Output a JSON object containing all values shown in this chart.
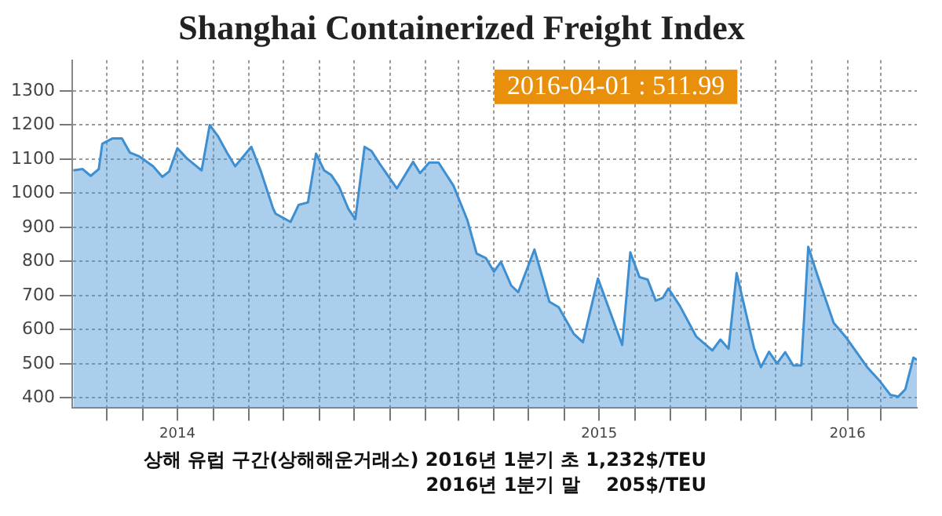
{
  "chart_data": {
    "type": "area",
    "title": "Shanghai Containerized Freight Index",
    "annotations": [
      "2016-04-01 : 511.99",
      "상해 유럽 구간(상해해운거래소) 2016년 1분기 초 1,232$/TEU",
      "2016년 1분기 말    205$/TEU"
    ],
    "x": [
      "2014-04-02",
      "2014-04-10",
      "2014-04-17",
      "2014-04-24",
      "2014-04-27",
      "2014-05-06",
      "2014-05-14",
      "2014-05-21",
      "2014-05-29",
      "2014-06-10",
      "2014-06-18",
      "2014-06-24",
      "2014-07-01",
      "2014-07-09",
      "2014-07-22",
      "2014-07-29",
      "2014-08-05",
      "2014-08-13",
      "2014-08-20",
      "2014-09-03",
      "2014-09-11",
      "2014-09-22",
      "2014-09-24",
      "2014-10-07",
      "2014-10-14",
      "2014-10-22",
      "2014-10-29",
      "2014-11-05",
      "2014-11-11",
      "2014-11-18",
      "2014-11-26",
      "2014-12-02",
      "2014-12-10",
      "2014-12-16",
      "2014-12-23",
      "2015-01-07",
      "2015-01-21",
      "2015-01-27",
      "2015-02-04",
      "2015-02-12",
      "2015-02-25",
      "2015-03-09",
      "2015-03-17",
      "2015-03-25",
      "2015-04-01",
      "2015-04-07",
      "2015-04-16",
      "2015-04-22",
      "2015-05-06",
      "2015-05-19",
      "2015-05-27",
      "2015-06-09",
      "2015-06-17",
      "2015-06-30",
      "2015-07-21",
      "2015-07-28",
      "2015-08-05",
      "2015-08-12",
      "2015-08-19",
      "2015-08-25",
      "2015-08-30",
      "2015-09-09",
      "2015-09-23",
      "2015-10-07",
      "2015-10-14",
      "2015-10-21",
      "2015-10-28",
      "2015-11-12",
      "2015-11-18",
      "2015-11-25",
      "2015-12-02",
      "2015-12-09",
      "2015-12-16",
      "2015-12-23",
      "2015-12-29",
      "2016-01-06",
      "2016-01-20",
      "2016-01-31",
      "2016-02-18",
      "2016-02-29",
      "2016-03-09",
      "2016-03-16",
      "2016-03-22",
      "2016-03-29",
      "2016-04-01"
    ],
    "series": [
      {
        "color": "#3d8fd1",
        "values": [
          1067,
          1071,
          1051,
          1071,
          1145,
          1161,
          1161,
          1119,
          1108,
          1079,
          1048,
          1064,
          1132,
          1103,
          1067,
          1200,
          1168,
          1119,
          1079,
          1136,
          1067,
          954,
          940,
          916,
          966,
          973,
          1116,
          1067,
          1054,
          1019,
          954,
          924,
          1136,
          1124,
          1087,
          1014,
          1092,
          1059,
          1090,
          1090,
          1022,
          921,
          823,
          810,
          770,
          799,
          729,
          710,
          835,
          682,
          666,
          588,
          563,
          750,
          555,
          827,
          754,
          747,
          685,
          693,
          721,
          669,
          580,
          539,
          571,
          544,
          766,
          547,
          490,
          535,
          501,
          534,
          495,
          495,
          843,
          759,
          620,
          576,
          490,
          449,
          409,
          404,
          425,
          518,
          511.99
        ]
      }
    ],
    "xlim": [
      "2014-04-01",
      "2016-04-01"
    ],
    "xticks": [
      {
        "value": "2014-05-01",
        "label": null
      },
      {
        "value": "2014-06-01",
        "label": null
      },
      {
        "value": "2014-07-01",
        "label": "2014"
      },
      {
        "value": "2014-08-01",
        "label": null
      },
      {
        "value": "2014-09-01",
        "label": null
      },
      {
        "value": "2014-10-01",
        "label": null
      },
      {
        "value": "2014-11-01",
        "label": null
      },
      {
        "value": "2014-12-01",
        "label": null
      },
      {
        "value": "2015-01-01",
        "label": null
      },
      {
        "value": "2015-02-01",
        "label": null
      },
      {
        "value": "2015-03-01",
        "label": null
      },
      {
        "value": "2015-04-01",
        "label": null
      },
      {
        "value": "2015-05-01",
        "label": null
      },
      {
        "value": "2015-06-01",
        "label": null
      },
      {
        "value": "2015-07-01",
        "label": "2015"
      },
      {
        "value": "2015-08-01",
        "label": null
      },
      {
        "value": "2015-09-01",
        "label": null
      },
      {
        "value": "2015-10-01",
        "label": null
      },
      {
        "value": "2015-11-01",
        "label": null
      },
      {
        "value": "2015-12-01",
        "label": null
      },
      {
        "value": "2016-01-01",
        "label": null
      },
      {
        "value": "2016-02-01",
        "label": "2016"
      },
      {
        "value": "2016-03-01",
        "label": null
      }
    ],
    "ylim": [
      370,
      1390
    ],
    "yticks": [
      400,
      500,
      600,
      700,
      800,
      900,
      1000,
      1100,
      1200,
      1300
    ],
    "grid": true,
    "legend": false,
    "marker": "none",
    "line_style": "solid"
  }
}
